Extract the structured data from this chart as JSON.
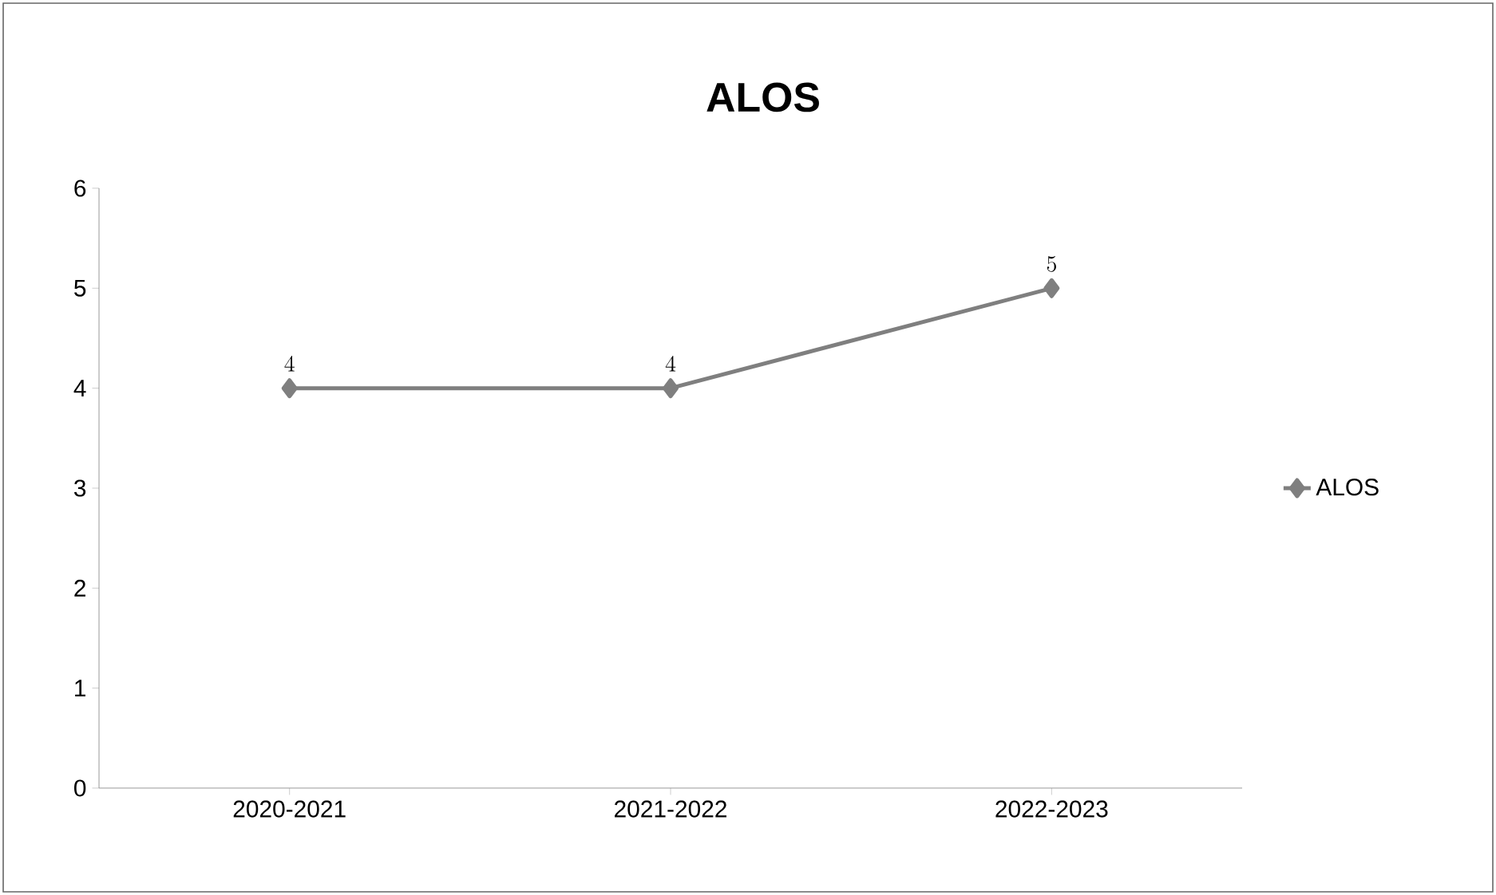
{
  "chart_data": {
    "type": "line",
    "title": "ALOS",
    "categories": [
      "2020-2021",
      "2021-2022",
      "2022-2023"
    ],
    "series": [
      {
        "name": "ALOS",
        "color": "#7f7f7f",
        "values": [
          4,
          4,
          5
        ]
      }
    ],
    "ylim": [
      0,
      6
    ],
    "yticks": [
      0,
      1,
      2,
      3,
      4,
      5,
      6
    ],
    "marker": "diamond",
    "data_labels": true,
    "legend": "right",
    "grid": false
  }
}
